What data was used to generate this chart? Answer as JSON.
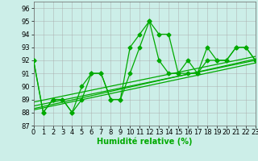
{
  "title": "",
  "xlabel": "Humidité relative (%)",
  "ylabel": "",
  "background_color": "#cceee8",
  "grid_color": "#aaaaaa",
  "line_color": "#00aa00",
  "xlim": [
    0,
    23
  ],
  "ylim": [
    87,
    96.5
  ],
  "yticks": [
    87,
    88,
    89,
    90,
    91,
    92,
    93,
    94,
    95,
    96
  ],
  "xticks": [
    0,
    1,
    2,
    3,
    4,
    5,
    6,
    7,
    8,
    9,
    10,
    11,
    12,
    13,
    14,
    15,
    16,
    17,
    18,
    19,
    20,
    21,
    22,
    23
  ],
  "series1": [
    92,
    88,
    89,
    89,
    88,
    90,
    91,
    91,
    89,
    89,
    93,
    94,
    95,
    94,
    94,
    91,
    92,
    91,
    93,
    92,
    92,
    93,
    93,
    92
  ],
  "series2": [
    92,
    88,
    89,
    89,
    88,
    89,
    91,
    91,
    89,
    89,
    91,
    93,
    95,
    92,
    91,
    91,
    91,
    91,
    92,
    92,
    92,
    93,
    93,
    92
  ],
  "trend1_x": [
    0,
    23
  ],
  "trend1_y": [
    88.5,
    92.0
  ],
  "trend2_x": [
    0,
    23
  ],
  "trend2_y": [
    88.2,
    91.8
  ],
  "trend3_x": [
    0,
    23
  ],
  "trend3_y": [
    88.8,
    92.3
  ],
  "trend4_x": [
    0,
    23
  ],
  "trend4_y": [
    88.3,
    92.1
  ],
  "marker": "D",
  "markersize": 2.5,
  "linewidth": 0.9,
  "xlabel_fontsize": 7,
  "tick_fontsize": 6,
  "figwidth": 3.2,
  "figheight": 2.0,
  "dpi": 100
}
